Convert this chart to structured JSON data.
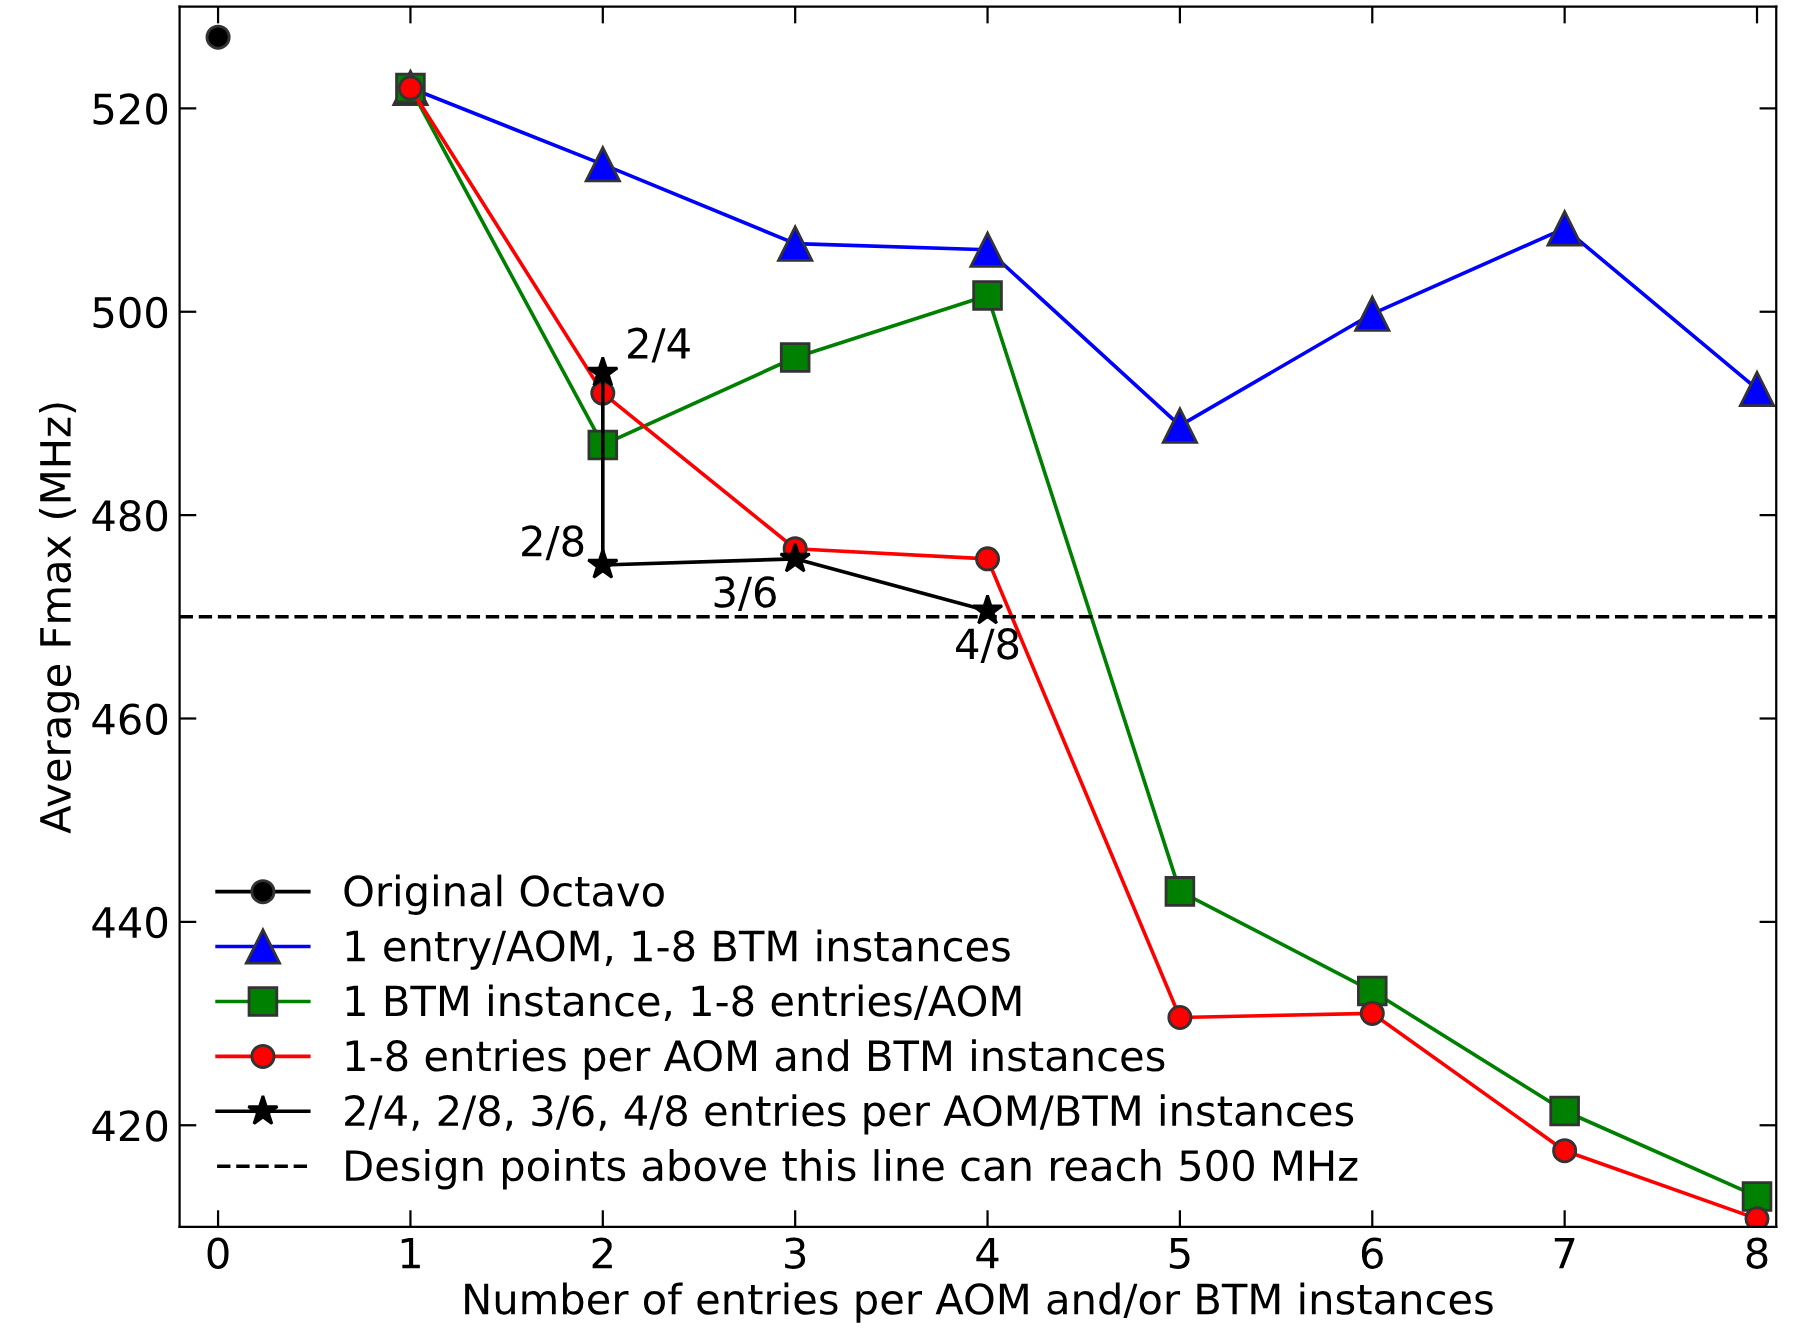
{
  "chart_data": {
    "type": "line",
    "xlabel": "Number of entries per AOM and/or BTM instances",
    "ylabel": "Average Fmax (MHz)",
    "xlim": [
      -0.2,
      8.1
    ],
    "ylim": [
      410,
      530
    ],
    "xticks": [
      0,
      1,
      2,
      3,
      4,
      5,
      6,
      7,
      8
    ],
    "yticks": [
      420,
      440,
      460,
      480,
      500,
      520
    ],
    "grid": false,
    "legend": "bottom left",
    "series": [
      {
        "name": "Original Octavo",
        "color": "#000000",
        "marker": "circle",
        "x": [
          0
        ],
        "values": [
          527
        ]
      },
      {
        "name": "1 entry/AOM, 1-8 BTM instances",
        "color": "#0000ff",
        "marker": "triangle",
        "x": [
          1,
          2,
          3,
          4,
          5,
          6,
          7,
          8
        ],
        "values": [
          522,
          514.5,
          506.7,
          506.1,
          488.8,
          499.8,
          508.2,
          492.4
        ]
      },
      {
        "name": "1 BTM instance, 1-8 entries/AOM",
        "color": "#008000",
        "marker": "square",
        "x": [
          1,
          2,
          3,
          4,
          5,
          6,
          7,
          8
        ],
        "values": [
          522,
          486.9,
          495.5,
          501.6,
          443,
          433.2,
          421.4,
          413
        ]
      },
      {
        "name": "1-8 entries per AOM and BTM instances",
        "color": "#ff0000",
        "marker": "circle",
        "x": [
          1,
          2,
          3,
          4,
          5,
          6,
          7,
          8
        ],
        "values": [
          522,
          492,
          476.7,
          475.7,
          430.6,
          431,
          417.5,
          410.8
        ]
      },
      {
        "name": "2/4, 2/8, 3/6, 4/8 entries per AOM/BTM instances",
        "color": "#000000",
        "marker": "star",
        "x": [
          2,
          2,
          3,
          4
        ],
        "values": [
          494,
          475.1,
          475.7,
          470.6
        ]
      }
    ],
    "ref_lines": [
      {
        "axis": "y",
        "value": 470,
        "label": "Design points above this line can reach 500 MHz",
        "color": "#000000",
        "line_style": "dashed"
      }
    ],
    "annotations": [
      {
        "text": "2/4",
        "x": 2,
        "y": 494
      },
      {
        "text": "2/8",
        "x": 2,
        "y": 475.1
      },
      {
        "text": "3/6",
        "x": 3,
        "y": 475.7
      },
      {
        "text": "4/8",
        "x": 4,
        "y": 470.6
      }
    ]
  }
}
